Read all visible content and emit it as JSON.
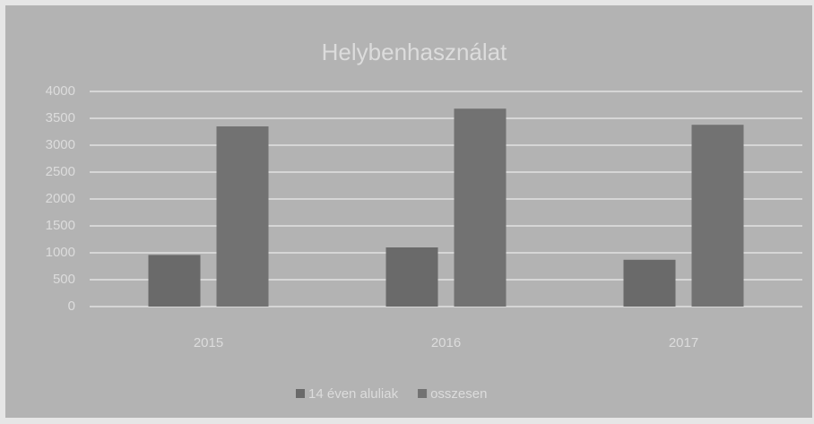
{
  "chart_data": {
    "type": "bar",
    "title": "Helybenhasználat",
    "categories": [
      "2015",
      "2016",
      "2017"
    ],
    "series": [
      {
        "name": "14 éven aluliak",
        "color": "#6a6a6a",
        "values": [
          960,
          1100,
          870
        ]
      },
      {
        "name": "osszesen",
        "color": "#727272",
        "values": [
          3350,
          3680,
          3380
        ]
      }
    ],
    "ylim": [
      0,
      4000
    ],
    "yticks": [
      0,
      500,
      1000,
      1500,
      2000,
      2500,
      3000,
      3500,
      4000
    ],
    "grid": true,
    "legend": "bottom"
  }
}
